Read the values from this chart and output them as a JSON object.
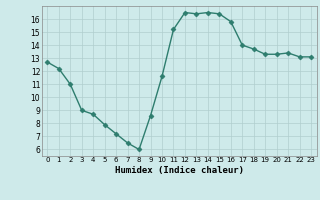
{
  "x": [
    0,
    1,
    2,
    3,
    4,
    5,
    6,
    7,
    8,
    9,
    10,
    11,
    12,
    13,
    14,
    15,
    16,
    17,
    18,
    19,
    20,
    21,
    22,
    23
  ],
  "y": [
    12.7,
    12.2,
    11.0,
    9.0,
    8.7,
    7.9,
    7.2,
    6.5,
    6.0,
    8.6,
    11.6,
    15.2,
    16.5,
    16.4,
    16.5,
    16.4,
    15.8,
    14.0,
    13.7,
    13.3,
    13.3,
    13.4,
    13.1,
    13.1
  ],
  "xlabel": "Humidex (Indice chaleur)",
  "xlim": [
    -0.5,
    23.5
  ],
  "ylim": [
    5.5,
    17.0
  ],
  "yticks": [
    6,
    7,
    8,
    9,
    10,
    11,
    12,
    13,
    14,
    15,
    16
  ],
  "xticks": [
    0,
    1,
    2,
    3,
    4,
    5,
    6,
    7,
    8,
    9,
    10,
    11,
    12,
    13,
    14,
    15,
    16,
    17,
    18,
    19,
    20,
    21,
    22,
    23
  ],
  "line_color": "#2e7d6e",
  "marker": "D",
  "bg_color": "#ceeaea",
  "grid_color": "#b0cece",
  "spine_color": "#888888"
}
